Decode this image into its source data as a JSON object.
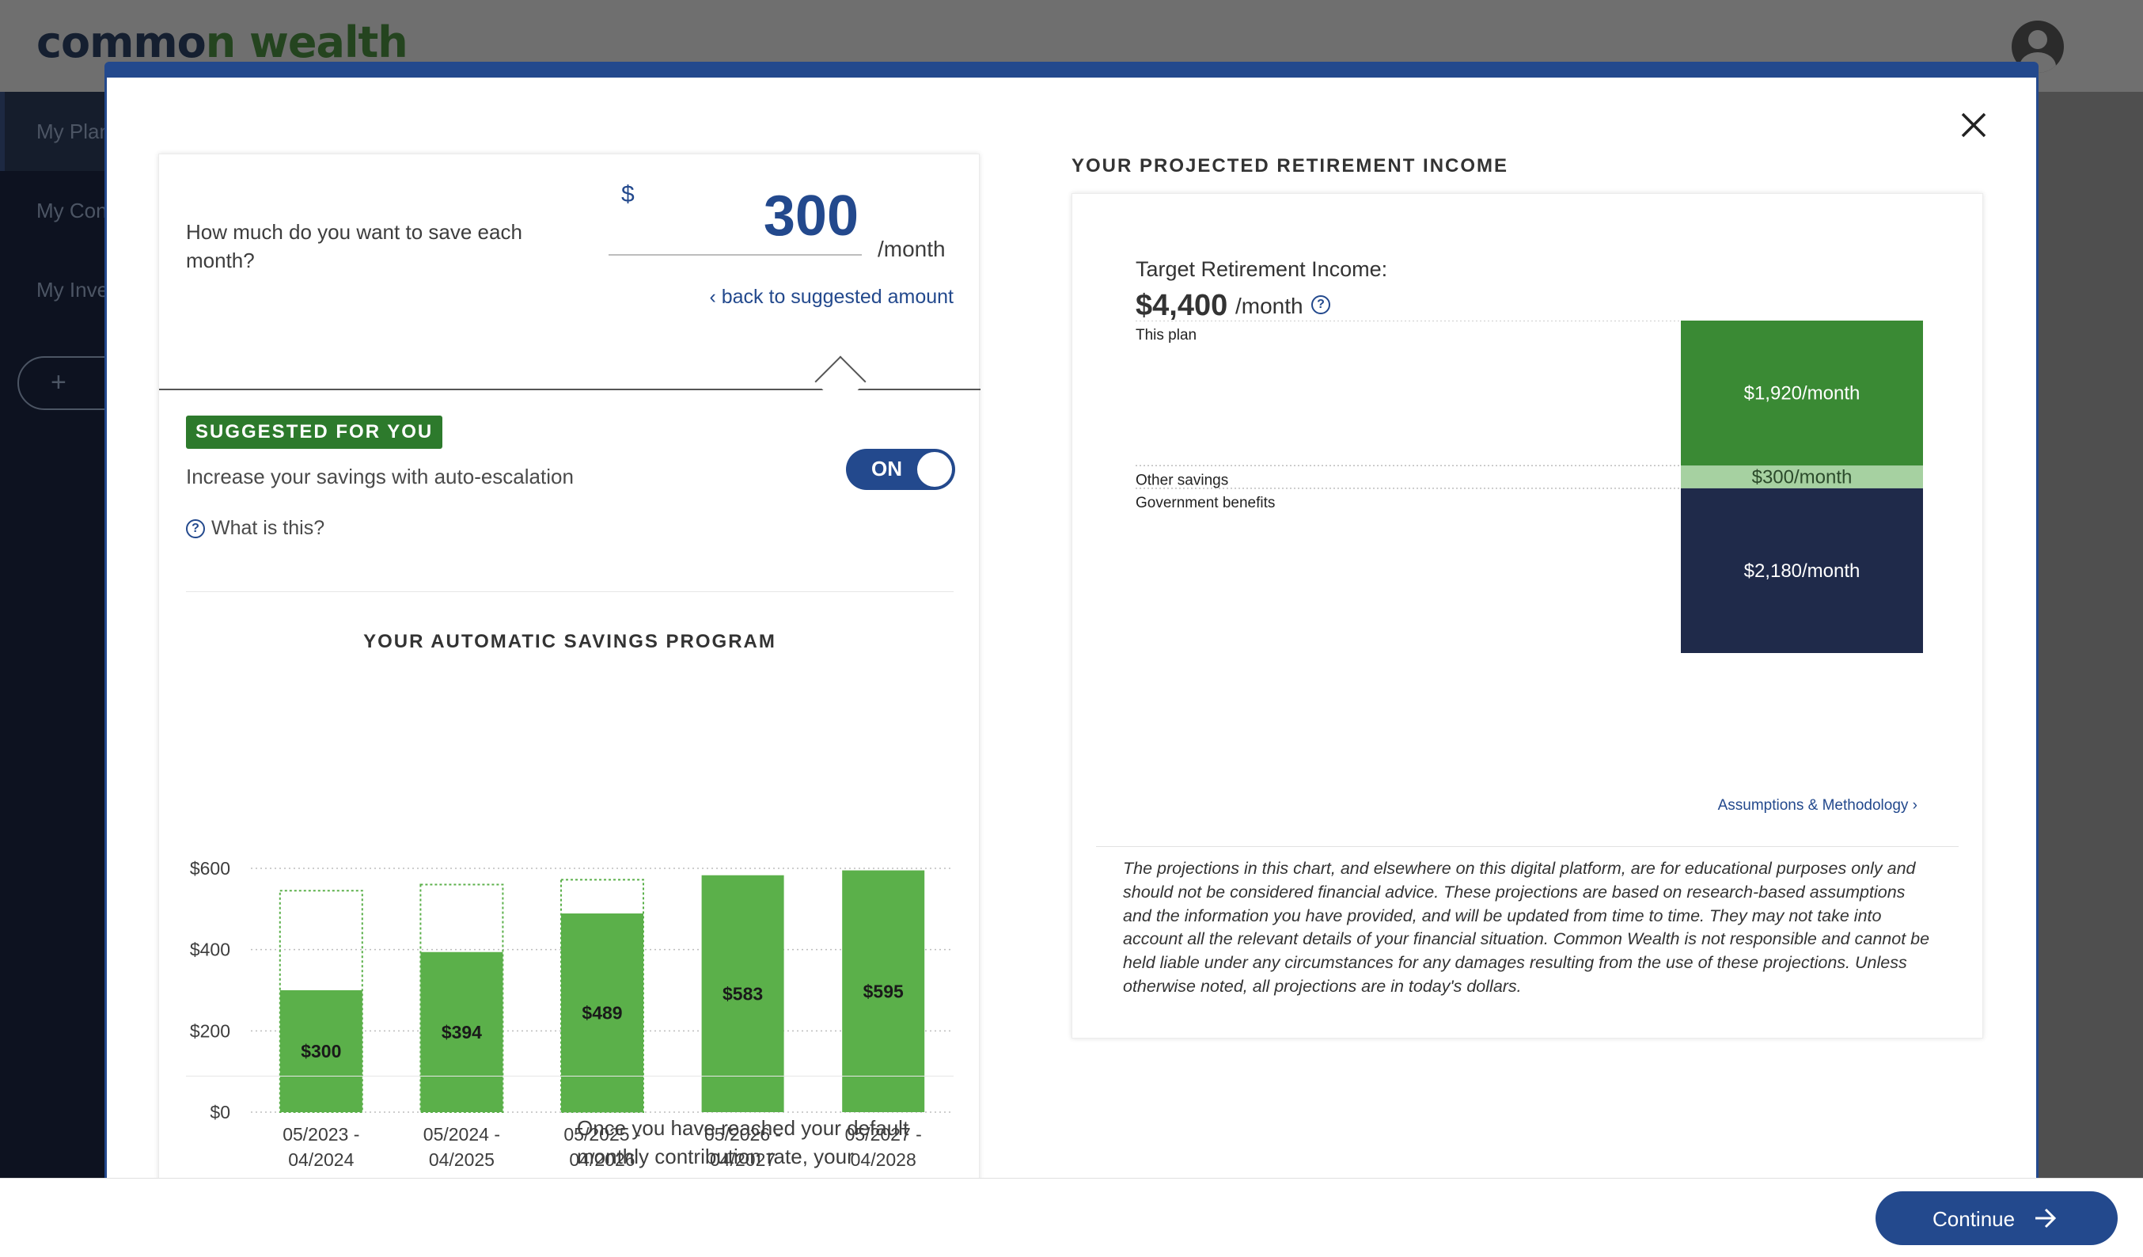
{
  "app": {
    "logo_part1": "commo",
    "logo_part2": "n wealth",
    "nav": [
      "My Plan",
      "My Contributions",
      "My Investments"
    ],
    "add_button_label": "Add"
  },
  "contribution": {
    "question": "How much do you want to save each month?",
    "currency": "$",
    "amount": "300",
    "per": "/month",
    "back_link": "‹ back to suggested amount"
  },
  "auto_escalation": {
    "badge": "SUGGESTED FOR YOU",
    "label": "Increase your savings with auto-escalation",
    "toggle_label": "ON",
    "toggle_on": true,
    "help_link": "What is this?"
  },
  "savings_program": {
    "title": "YOUR AUTOMATIC SAVINGS PROGRAM",
    "after_text": "Once you have reached your default monthly contribution rate, your"
  },
  "retirement": {
    "title": "YOUR PROJECTED RETIREMENT INCOME",
    "target_label": "Target Retirement Income:",
    "target_value": "$4,400",
    "target_per": "/month",
    "assumptions_link": "Assumptions & Methodology ›",
    "disclaimer": "The projections in this chart, and elsewhere on this digital platform, are for educational purposes only and should not be considered financial advice. These projections are based on research-based assumptions and the information you have provided, and will be updated from time to time. They may not take into account all the relevant details of your financial situation. Common Wealth is not responsible and cannot be held liable under any circumstances for any damages resulting from the use of these projections. Unless otherwise noted, all projections are in today's dollars."
  },
  "footer": {
    "continue_label": "Continue"
  },
  "colors": {
    "brand_blue": "#23498d",
    "bar_green": "#5bb04a",
    "plan_green": "#3a8a34",
    "other_green": "#a6d1a1",
    "gov_navy": "#1f2a4a"
  },
  "icons": [
    "close-icon",
    "chevron-left-icon",
    "question-circle-icon",
    "arrow-right-icon",
    "plus-icon",
    "user-avatar-icon"
  ],
  "chart_data": [
    {
      "type": "bar",
      "title": "YOUR AUTOMATIC SAVINGS PROGRAM",
      "categories": [
        "05/2023 -\n04/2024",
        "05/2024 -\n04/2025",
        "05/2025 -\n04/2026",
        "05/2026 -\n04/2027",
        "05/2027 -\n04/2028"
      ],
      "values": [
        300,
        394,
        489,
        583,
        595
      ],
      "value_labels": [
        "$300",
        "$394",
        "$489",
        "$583",
        "$595"
      ],
      "target_outline_values": [
        545,
        560,
        572,
        583,
        595
      ],
      "yticks": [
        "$0",
        "$200",
        "$400",
        "$600"
      ],
      "ytick_values": [
        0,
        200,
        400,
        600
      ],
      "ylim": [
        0,
        600
      ],
      "grid": true
    },
    {
      "type": "bar",
      "title": "",
      "stacked": true,
      "series": [
        {
          "name": "This plan",
          "value": 1920,
          "label": "$1,920/month"
        },
        {
          "name": "Other savings",
          "value": 300,
          "label": "$300/month"
        },
        {
          "name": "Government benefits",
          "value": 2180,
          "label": "$2,180/month"
        }
      ],
      "total": 4400
    }
  ]
}
